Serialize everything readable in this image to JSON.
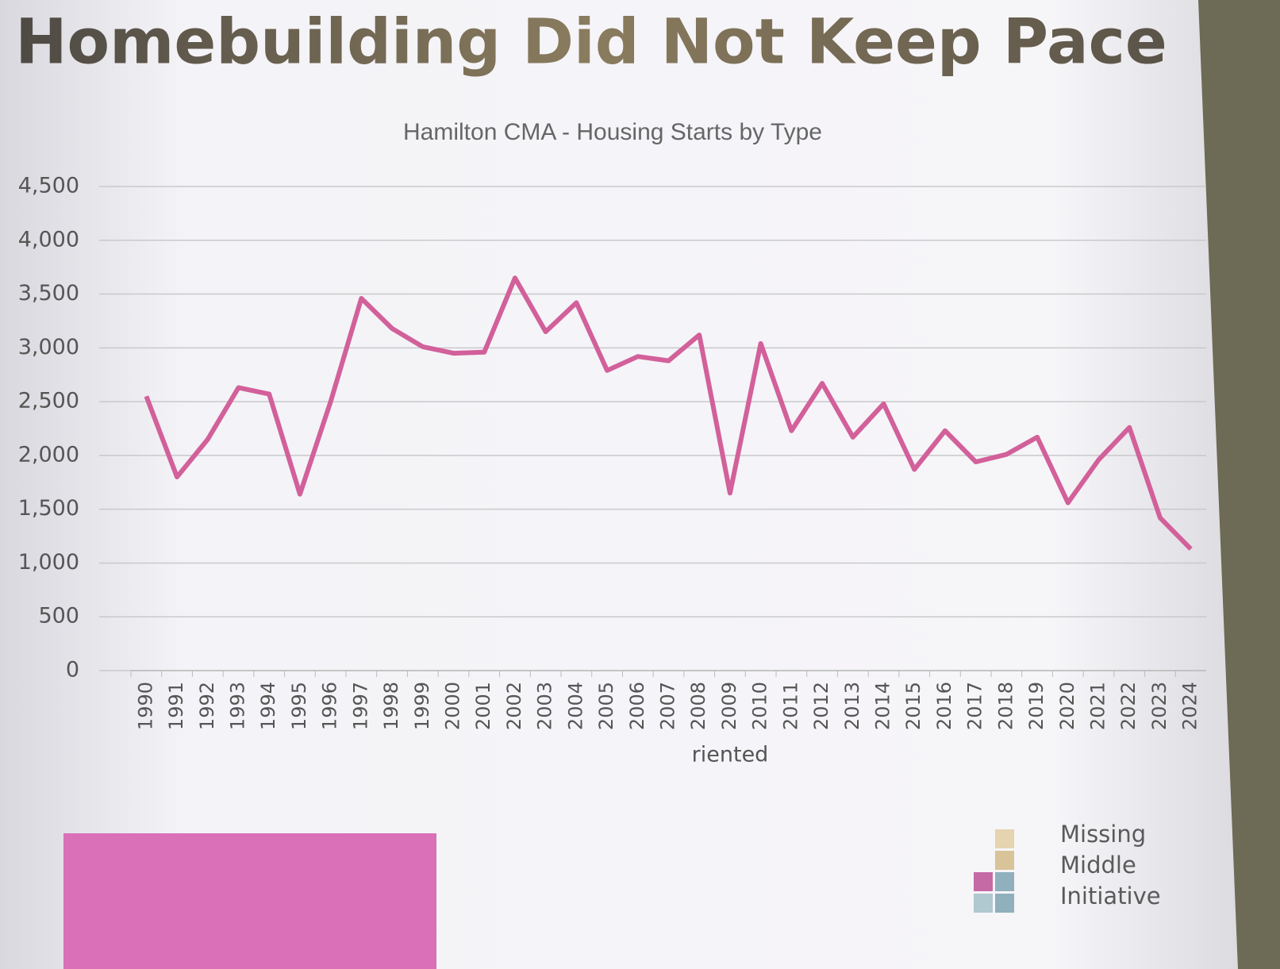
{
  "heading": "Homebuilding Did Not Keep Pace",
  "logo": [
    "Missing",
    "Middle",
    "Initiative"
  ],
  "chart_data": {
    "type": "line",
    "title": "Hamilton CMA - Housing Starts by Type",
    "categories": [
      "1990",
      "1991",
      "1992",
      "1993",
      "1994",
      "1995",
      "1996",
      "1997",
      "1998",
      "1999",
      "2000",
      "2001",
      "2002",
      "2003",
      "2004",
      "2005",
      "2006",
      "2007",
      "2008",
      "2009",
      "2010",
      "2011",
      "2012",
      "2013",
      "2014",
      "2015",
      "2016",
      "2017",
      "2018",
      "2019",
      "2020",
      "2021",
      "2022",
      "2023",
      "2024"
    ],
    "series": [
      {
        "name": "riented",
        "color": "#d2609a",
        "values": [
          2550,
          1800,
          2150,
          2630,
          2570,
          1640,
          2500,
          3460,
          3180,
          3010,
          2950,
          2960,
          3650,
          3150,
          3420,
          2790,
          2920,
          2880,
          3120,
          1650,
          3040,
          2230,
          2670,
          2170,
          2480,
          1870,
          2230,
          1940,
          2010,
          2170,
          1560,
          1960,
          2260,
          1420,
          1130
        ]
      }
    ],
    "ylim": [
      0,
      4500
    ],
    "yticks": [
      0,
      500,
      {
        "value": 1000,
        "label": "1,000"
      },
      {
        "value": 1500,
        "label": "1,500"
      },
      {
        "value": 2000,
        "label": "2,000"
      },
      {
        "value": 2500,
        "label": "2,500"
      },
      {
        "value": 3000,
        "label": "3,000"
      },
      {
        "value": 3500,
        "label": "3,500"
      },
      {
        "value": 4000,
        "label": "4,000"
      },
      {
        "value": 4500,
        "label": "4,500"
      }
    ],
    "grid": true,
    "legend": "bottom"
  }
}
